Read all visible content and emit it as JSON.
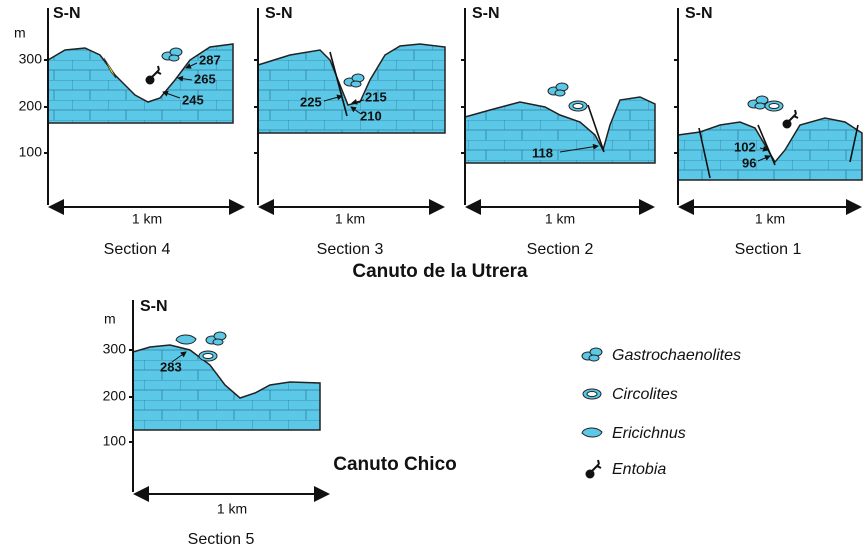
{
  "sections": [
    {
      "title": "S-N",
      "axis": {
        "unit": "m",
        "labels": [
          "300",
          "200",
          "100"
        ]
      },
      "samples": [
        "287",
        "265",
        "245"
      ],
      "scale": "1 km",
      "caption": "Section 4"
    },
    {
      "title": "S-N",
      "samples": [
        "225",
        "215",
        "210"
      ],
      "scale": "1 km",
      "caption": "Section 3"
    },
    {
      "title": "S-N",
      "samples": [
        "118"
      ],
      "scale": "1 km",
      "caption": "Section 2"
    },
    {
      "title": "S-N",
      "samples": [
        "102",
        "96"
      ],
      "scale": "1 km",
      "caption": "Section 1"
    },
    {
      "title": "S-N",
      "axis": {
        "unit": "m",
        "labels": [
          "300",
          "200",
          "100"
        ]
      },
      "samples": [
        "283"
      ],
      "scale": "1 km",
      "caption": "Section 5"
    }
  ],
  "groups": [
    "Canuto de la Utrera",
    "Canuto Chico"
  ],
  "legend": [
    "Gastrochaenolites",
    "Circolites",
    "Ericichnus",
    "Entobia"
  ]
}
